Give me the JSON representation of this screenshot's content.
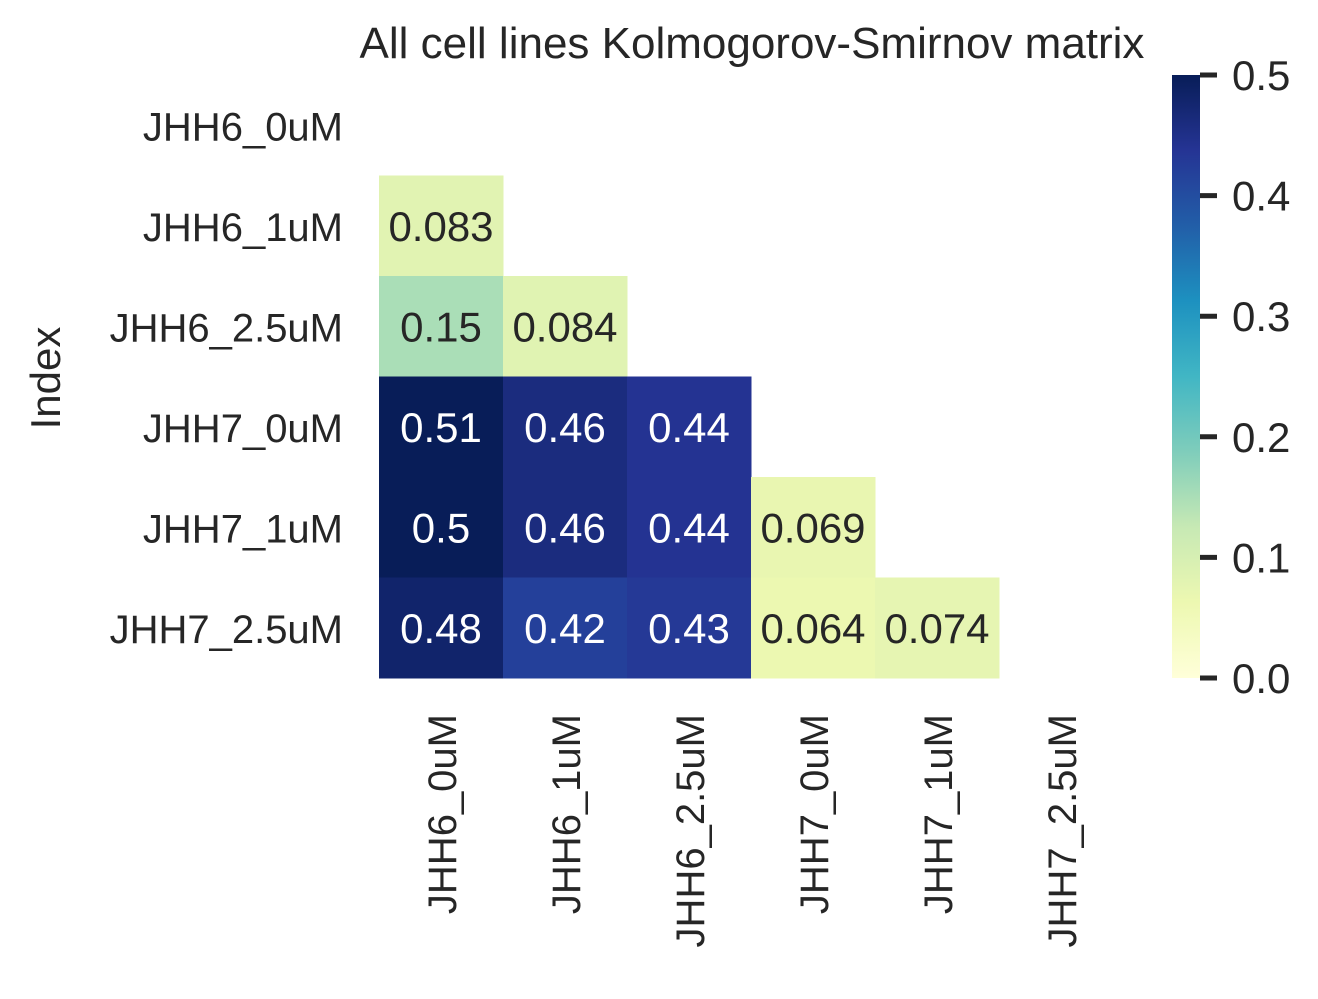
{
  "chart_data": {
    "type": "heatmap",
    "title": "All cell lines Kolmogorov-Smirnov matrix",
    "ylabel": "Index",
    "xlabel": "",
    "rows": [
      "JHH6_0uM",
      "JHH6_1uM",
      "JHH6_2.5uM",
      "JHH7_0uM",
      "JHH7_1uM",
      "JHH7_2.5uM"
    ],
    "columns": [
      "JHH6_0uM",
      "JHH6_1uM",
      "JHH6_2.5uM",
      "JHH7_0uM",
      "JHH7_1uM",
      "JHH7_2.5uM"
    ],
    "values": [
      [
        null,
        null,
        null,
        null,
        null,
        null
      ],
      [
        0.083,
        null,
        null,
        null,
        null,
        null
      ],
      [
        0.15,
        0.084,
        null,
        null,
        null,
        null
      ],
      [
        0.51,
        0.46,
        0.44,
        null,
        null,
        null
      ],
      [
        0.5,
        0.46,
        0.44,
        0.069,
        null,
        null
      ],
      [
        0.48,
        0.42,
        0.43,
        0.064,
        0.074,
        null
      ]
    ],
    "labels": [
      [
        null,
        null,
        null,
        null,
        null,
        null
      ],
      [
        "0.083",
        null,
        null,
        null,
        null,
        null
      ],
      [
        "0.15",
        "0.084",
        null,
        null,
        null,
        null
      ],
      [
        "0.51",
        "0.46",
        "0.44",
        null,
        null,
        null
      ],
      [
        "0.5",
        "0.46",
        "0.44",
        "0.069",
        null,
        null
      ],
      [
        "0.48",
        "0.42",
        "0.43",
        "0.064",
        "0.074",
        null
      ]
    ],
    "mask": "upper-triangle",
    "colormap": "YlGnBu",
    "colorbar": {
      "vmin": 0.0,
      "vmax": 0.5,
      "ticks": [
        "0.0",
        "0.1",
        "0.2",
        "0.3",
        "0.4",
        "0.5"
      ]
    }
  }
}
